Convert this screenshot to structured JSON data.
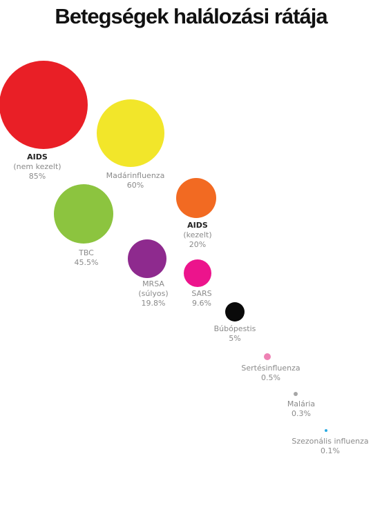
{
  "title": "Betegségek halálozási rátája",
  "chart_data": {
    "type": "bubble",
    "title": "Betegségek halálozási rátája",
    "unit": "%",
    "items": [
      {
        "lines": [
          "AIDS",
          "(nem kezelt)"
        ],
        "value_label": "85%",
        "value": 85,
        "color": "#e91f26",
        "strong": true
      },
      {
        "lines": [
          "Madárinfluenza"
        ],
        "value_label": "60%",
        "value": 60,
        "color": "#f2e62a",
        "strong": false
      },
      {
        "lines": [
          "TBC"
        ],
        "value_label": "45.5%",
        "value": 45.5,
        "color": "#8cc43f",
        "strong": false
      },
      {
        "lines": [
          "AIDS",
          "(kezelt)"
        ],
        "value_label": "20%",
        "value": 20,
        "color": "#f26a22",
        "strong": true
      },
      {
        "lines": [
          "MRSA",
          "(súlyos)"
        ],
        "value_label": "19.8%",
        "value": 19.8,
        "color": "#8e2a8e",
        "strong": false
      },
      {
        "lines": [
          "SARS"
        ],
        "value_label": "9.6%",
        "value": 9.6,
        "color": "#ec148c",
        "strong": false
      },
      {
        "lines": [
          "Búbópestis"
        ],
        "value_label": "5%",
        "value": 5,
        "color": "#0a0a0a",
        "strong": false
      },
      {
        "lines": [
          "Sertésinfluenza"
        ],
        "value_label": "0.5%",
        "value": 0.5,
        "color": "#ee82b4",
        "strong": false
      },
      {
        "lines": [
          "Malária"
        ],
        "value_label": "0.3%",
        "value": 0.3,
        "color": "#a6a6a6",
        "strong": false
      },
      {
        "lines": [
          "Szezonális influenza"
        ],
        "value_label": "0.1%",
        "value": 0.1,
        "color": "#2aaae2",
        "strong": false
      }
    ]
  }
}
